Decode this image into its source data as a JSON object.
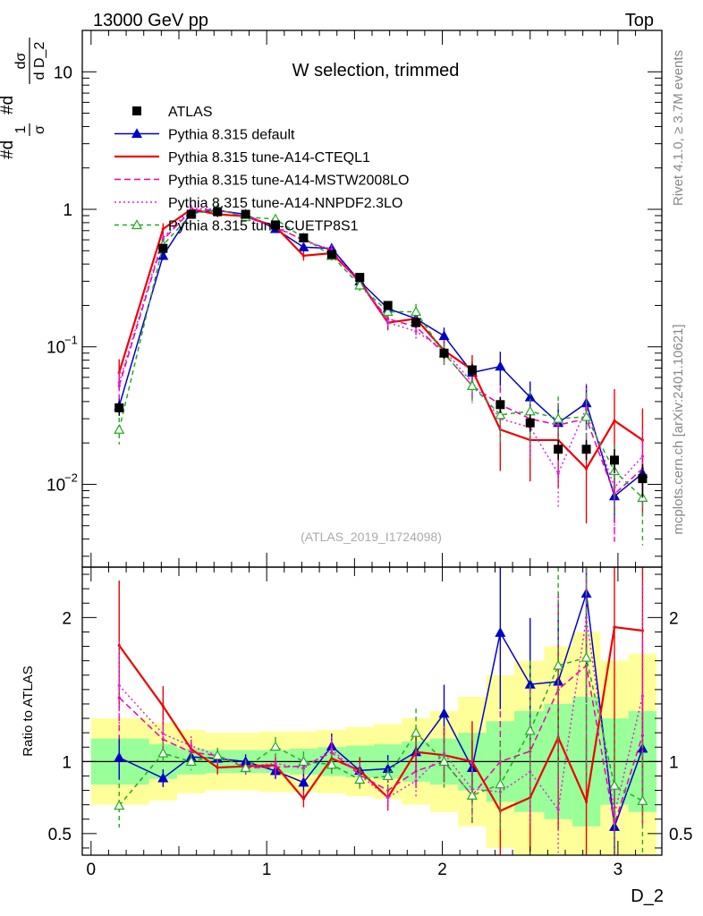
{
  "header": {
    "left": "13000 GeV pp",
    "right": "Top"
  },
  "side_labels": {
    "version": "Rivet 4.1.0, ≥ 3.7M events",
    "source": "mcplots.cern.ch [arXiv:2401.10621]"
  },
  "colors": {
    "atlas": "#000000",
    "default": "#0000cc",
    "cteql1": "#ee0000",
    "mstw": "#ee00aa",
    "nnpdf": "#dd22dd",
    "cuetp8s1": "#22aa22",
    "band_green": "#99ff99",
    "band_yellow": "#ffff99"
  },
  "chart_data": {
    "type": "line",
    "title": "W selection, trimmed",
    "analysis": "(ATLAS_2019_I1724098)",
    "xlabel": "D_2",
    "ylabel_main": "#d₁/σ #d dσ/d D_2",
    "ylabel_main_parts": {
      "num1": "1",
      "den1": "σ",
      "num2": "dσ",
      "den2": "d D_2",
      "p1": "#d",
      "p2": "#d"
    },
    "ylabel_ratio": "Ratio to ATLAS",
    "xlim": [
      -0.05,
      3.25
    ],
    "ylim_main": [
      0.0025,
      20
    ],
    "ylim_ratio": [
      0.35,
      2.35
    ],
    "x_ticks": [
      0,
      1,
      2,
      3
    ],
    "y_ticks_main": [
      {
        "value": 0.01,
        "base": "10",
        "exp": "−2"
      },
      {
        "value": 0.1,
        "base": "10",
        "exp": "−1"
      },
      {
        "value": 1,
        "base": "1",
        "exp": ""
      },
      {
        "value": 10,
        "base": "10",
        "exp": ""
      }
    ],
    "y_ticks_ratio": [
      {
        "value": 0.5,
        "label": "0.5"
      },
      {
        "value": 1,
        "label": "1"
      },
      {
        "value": 2,
        "label": "2"
      }
    ],
    "x": [
      0.16,
      0.41,
      0.57,
      0.72,
      0.88,
      1.05,
      1.21,
      1.37,
      1.53,
      1.69,
      1.85,
      2.01,
      2.17,
      2.33,
      2.5,
      2.66,
      2.82,
      2.98,
      3.14
    ],
    "bin_edges": [
      0.0,
      0.33,
      0.49,
      0.65,
      0.8,
      0.96,
      1.13,
      1.29,
      1.45,
      1.61,
      1.77,
      1.93,
      2.09,
      2.25,
      2.41,
      2.58,
      2.74,
      2.9,
      3.06,
      3.22
    ],
    "atlas": {
      "name": "ATLAS",
      "values": [
        0.036,
        0.52,
        0.92,
        0.96,
        0.92,
        0.77,
        0.62,
        0.47,
        0.32,
        0.2,
        0.15,
        0.09,
        0.068,
        0.038,
        0.028,
        0.018,
        0.018,
        0.015,
        0.011
      ],
      "errors": [
        0.004,
        0.04,
        0.06,
        0.06,
        0.05,
        0.05,
        0.04,
        0.03,
        0.02,
        0.015,
        0.012,
        0.008,
        0.007,
        0.005,
        0.004,
        0.003,
        0.003,
        0.003,
        0.003
      ],
      "band_inner": [
        0.16,
        0.12,
        0.09,
        0.08,
        0.08,
        0.08,
        0.09,
        0.1,
        0.11,
        0.12,
        0.14,
        0.16,
        0.2,
        0.28,
        0.35,
        0.4,
        0.45,
        0.3,
        0.35
      ],
      "band_outer": [
        0.3,
        0.27,
        0.22,
        0.2,
        0.2,
        0.21,
        0.21,
        0.22,
        0.24,
        0.26,
        0.3,
        0.35,
        0.45,
        0.6,
        0.7,
        0.8,
        0.9,
        0.7,
        0.75
      ]
    },
    "series": [
      {
        "name": "Pythia 8.315 default",
        "key": "default",
        "dash": "",
        "marker": "triangle",
        "values": [
          0.037,
          0.46,
          0.95,
          0.98,
          0.92,
          0.72,
          0.53,
          0.52,
          0.3,
          0.19,
          0.16,
          0.12,
          0.065,
          0.072,
          0.043,
          0.028,
          0.039,
          0.0082,
          0.012
        ],
        "ratio_errors": [
          0.15,
          0.07,
          0.06,
          0.05,
          0.05,
          0.06,
          0.07,
          0.08,
          0.09,
          0.1,
          0.13,
          0.15,
          0.2,
          0.28,
          0.3,
          0.35,
          0.35,
          0.35,
          0.35
        ]
      },
      {
        "name": "Pythia 8.315 tune-A14-CTEQL1",
        "key": "cteql1",
        "dash": "",
        "marker": "none",
        "values": [
          0.065,
          0.72,
          1.0,
          0.92,
          0.89,
          0.75,
          0.46,
          0.48,
          0.3,
          0.15,
          0.16,
          0.094,
          0.068,
          0.025,
          0.021,
          0.021,
          0.013,
          0.029,
          0.021
        ],
        "ratio_errors": [
          0.25,
          0.1,
          0.06,
          0.05,
          0.05,
          0.06,
          0.08,
          0.08,
          0.1,
          0.12,
          0.14,
          0.18,
          0.28,
          0.5,
          0.5,
          0.55,
          0.6,
          0.7,
          0.7
        ]
      },
      {
        "name": "Pythia 8.315 tune-A14-MSTW2008LO",
        "key": "mstw",
        "dash": "7,4",
        "marker": "none",
        "values": [
          0.052,
          0.6,
          0.98,
          1.0,
          0.88,
          0.74,
          0.6,
          0.5,
          0.29,
          0.16,
          0.14,
          0.09,
          0.052,
          0.038,
          0.03,
          0.027,
          0.03,
          0.0085,
          0.013
        ],
        "ratio_errors": [
          0.2,
          0.08,
          0.06,
          0.05,
          0.05,
          0.06,
          0.07,
          0.08,
          0.09,
          0.12,
          0.14,
          0.18,
          0.25,
          0.35,
          0.4,
          0.45,
          0.5,
          0.55,
          0.55
        ]
      },
      {
        "name": "Pythia 8.315 tune-A14-NNPDF2.3LO",
        "key": "nnpdf",
        "dash": "2,3",
        "marker": "none",
        "values": [
          0.055,
          0.62,
          1.02,
          1.0,
          0.89,
          0.76,
          0.59,
          0.51,
          0.29,
          0.15,
          0.13,
          0.095,
          0.055,
          0.03,
          0.026,
          0.012,
          0.036,
          0.0095,
          0.016
        ],
        "ratio_errors": [
          0.2,
          0.08,
          0.06,
          0.05,
          0.05,
          0.06,
          0.07,
          0.08,
          0.09,
          0.12,
          0.14,
          0.18,
          0.25,
          0.35,
          0.4,
          0.45,
          0.5,
          0.55,
          0.55
        ]
      },
      {
        "name": "Pythia 8.315 tune-CUETP8S1",
        "key": "cuetp8s1",
        "dash": "5,4",
        "marker": "triangle-open",
        "values": [
          0.025,
          0.55,
          0.92,
          1.0,
          0.88,
          0.85,
          0.62,
          0.46,
          0.28,
          0.18,
          0.18,
          0.09,
          0.052,
          0.032,
          0.034,
          0.03,
          0.031,
          0.0125,
          0.008
        ],
        "ratio_errors": [
          0.22,
          0.08,
          0.06,
          0.05,
          0.05,
          0.06,
          0.07,
          0.08,
          0.09,
          0.12,
          0.14,
          0.18,
          0.25,
          0.35,
          0.4,
          0.45,
          0.5,
          0.55,
          0.55
        ]
      }
    ]
  }
}
